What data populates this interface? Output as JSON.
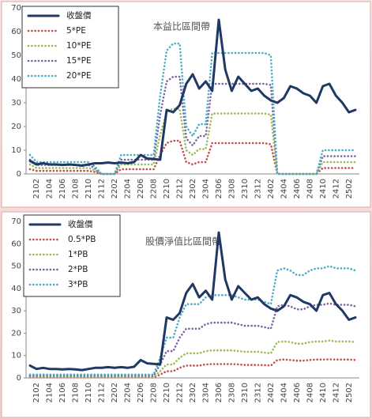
{
  "chart_data": [
    {
      "type": "line",
      "annotation": "本益比區間帶",
      "categories": [
        null,
        "2102",
        null,
        "2104",
        null,
        "2106",
        null,
        "2108",
        null,
        "2110",
        null,
        "2112",
        null,
        "2202",
        null,
        "2204",
        null,
        "2206",
        null,
        "2208",
        null,
        "2210",
        null,
        "2212",
        null,
        "2302",
        null,
        "2304",
        null,
        "2306",
        null,
        "2308",
        null,
        "2310",
        null,
        "2312",
        null,
        "2402",
        null,
        "2404",
        null,
        "2406",
        null,
        "2408",
        null,
        "2410",
        null,
        "2412",
        null,
        "2502",
        null
      ],
      "ylim": [
        0,
        70
      ],
      "yticks": [
        0,
        10,
        20,
        30,
        40,
        50,
        60,
        70
      ],
      "series": [
        {
          "name": "收盤價",
          "color": "#1f3864",
          "values": [
            5.5,
            4,
            4.5,
            4,
            4,
            3.8,
            4,
            3.8,
            3.5,
            4,
            4.5,
            4.5,
            4.8,
            4.5,
            4.8,
            4.5,
            5,
            8,
            6.5,
            6.3,
            6,
            27,
            26,
            29,
            38,
            42,
            36,
            39,
            35,
            65,
            44,
            35,
            41,
            38,
            35,
            36,
            33,
            31,
            30,
            32,
            37,
            36,
            34,
            33,
            30,
            37,
            38,
            33,
            30,
            26,
            27
          ]
        },
        {
          "name": "5*PE",
          "color": "#c0504d",
          "values": [
            2,
            1.3,
            1.3,
            1.3,
            1.3,
            1.3,
            1.3,
            1.3,
            1.3,
            1.3,
            0.8,
            0,
            0,
            0,
            2,
            2,
            2,
            2,
            2,
            2,
            8,
            13,
            14,
            14,
            5,
            4,
            5,
            5,
            13,
            13,
            13,
            13,
            13,
            13,
            13,
            13,
            13,
            12.5,
            0,
            0,
            0,
            0,
            0,
            0,
            0,
            2.5,
            2.5,
            2.5,
            2.5,
            2.5,
            2.5
          ]
        },
        {
          "name": "10*PE",
          "color": "#9bbb59",
          "values": [
            4,
            2.5,
            2.5,
            2.5,
            2.5,
            2.5,
            2.5,
            2.5,
            2.5,
            2.5,
            1.5,
            0,
            0,
            0,
            4,
            4,
            4,
            4,
            4,
            4,
            16.5,
            26,
            27.5,
            27.5,
            10,
            8,
            10.5,
            10.5,
            25.5,
            25.5,
            25.5,
            25.5,
            25.5,
            25.5,
            25.5,
            25.5,
            25.5,
            25,
            0,
            0,
            0,
            0,
            0,
            0,
            0,
            5,
            5,
            5,
            5,
            5,
            5
          ]
        },
        {
          "name": "15*PE",
          "color": "#8064a2",
          "values": [
            6,
            3.8,
            3.8,
            3.8,
            3.8,
            3.8,
            3.8,
            3.8,
            3.8,
            3.8,
            2.3,
            0,
            0,
            0,
            6,
            6,
            6,
            6,
            6,
            6,
            25,
            39,
            41,
            41,
            15,
            12,
            16,
            16,
            38,
            38,
            38,
            38,
            38,
            38,
            38,
            38,
            38,
            37.5,
            0,
            0,
            0,
            0,
            0,
            0,
            0,
            7.5,
            7.5,
            7.5,
            7.5,
            7.5,
            7.5
          ]
        },
        {
          "name": "20*PE",
          "color": "#4bacc6",
          "values": [
            8,
            5,
            5,
            5,
            5,
            5,
            5,
            5,
            5,
            5,
            3,
            0,
            0,
            0,
            8,
            8,
            8,
            8,
            8,
            8,
            33,
            52,
            55,
            55,
            20,
            16,
            21,
            21,
            51,
            51,
            51,
            51,
            51,
            51,
            51,
            51,
            51,
            50,
            0,
            0,
            0,
            0,
            0,
            0,
            0,
            10,
            10,
            10,
            10,
            10,
            10
          ]
        }
      ]
    },
    {
      "type": "line",
      "annotation": "股價淨值比區間帶",
      "categories": [
        null,
        "2102",
        null,
        "2104",
        null,
        "2106",
        null,
        "2108",
        null,
        "2110",
        null,
        "2112",
        null,
        "2202",
        null,
        "2204",
        null,
        "2206",
        null,
        "2208",
        null,
        "2210",
        null,
        "2212",
        null,
        "2302",
        null,
        "2304",
        null,
        "2306",
        null,
        "2308",
        null,
        "2310",
        null,
        "2312",
        null,
        "2402",
        null,
        "2404",
        null,
        "2406",
        null,
        "2408",
        null,
        "2410",
        null,
        "2412",
        null,
        "2502",
        null
      ],
      "ylim": [
        0,
        70
      ],
      "yticks": [
        0,
        10,
        20,
        30,
        40,
        50,
        60,
        70
      ],
      "series": [
        {
          "name": "收盤價",
          "color": "#1f3864",
          "values": [
            5.5,
            4,
            4.5,
            4,
            4,
            3.8,
            4,
            3.8,
            3.5,
            4,
            4.5,
            4.5,
            4.8,
            4.5,
            4.8,
            4.5,
            5,
            8,
            6.5,
            6.3,
            6,
            27,
            26,
            29,
            38,
            42,
            36,
            39,
            35,
            65,
            44,
            35,
            41,
            38,
            35,
            36,
            33,
            31,
            30,
            32,
            37,
            36,
            34,
            33,
            30,
            37,
            38,
            33,
            30,
            26,
            27
          ]
        },
        {
          "name": "0.5*PB",
          "color": "#c0504d",
          "values": [
            0.25,
            0.25,
            0.25,
            0.25,
            0.25,
            0.25,
            0.25,
            0.25,
            0.25,
            0.25,
            0.25,
            0.25,
            0.25,
            0.25,
            0.25,
            0.25,
            0.25,
            0.25,
            0.25,
            0.25,
            1.5,
            3,
            3,
            4.5,
            5.5,
            5.5,
            5.5,
            6,
            6.2,
            6.2,
            6.2,
            6.2,
            6,
            5.8,
            5.8,
            5.8,
            5.7,
            5.5,
            8,
            8.2,
            8,
            7.7,
            7.7,
            8,
            8.2,
            8.2,
            8.3,
            8.2,
            8.2,
            8.2,
            8
          ]
        },
        {
          "name": "1*PB",
          "color": "#9bbb59",
          "values": [
            0.5,
            0.5,
            0.5,
            0.5,
            0.5,
            0.5,
            0.5,
            0.5,
            0.5,
            0.5,
            0.5,
            0.5,
            0.5,
            0.5,
            0.5,
            0.5,
            0.5,
            0.5,
            0.5,
            0.5,
            3,
            6,
            6,
            9,
            11,
            11,
            11,
            12,
            12.3,
            12.3,
            12.3,
            12.3,
            12,
            11.7,
            11.7,
            11.7,
            11.3,
            11,
            16,
            16.3,
            16,
            15.3,
            15.3,
            16,
            16.3,
            16.3,
            16.7,
            16.3,
            16.3,
            16.3,
            16
          ]
        },
        {
          "name": "2*PB",
          "color": "#8064a2",
          "values": [
            1,
            1,
            1,
            1,
            1,
            1,
            1,
            1,
            1,
            1,
            1,
            1,
            1,
            1,
            1,
            1,
            1,
            1,
            1,
            1,
            6,
            12,
            12,
            18,
            22,
            22,
            22,
            24,
            24.7,
            24.7,
            24.7,
            24.7,
            24,
            23.3,
            23.3,
            23.3,
            22.7,
            22,
            32,
            32.7,
            32,
            30.7,
            30.7,
            32,
            32.7,
            32.7,
            33.3,
            32.7,
            32.7,
            32.7,
            32
          ]
        },
        {
          "name": "3*PB",
          "color": "#4bacc6",
          "values": [
            1.5,
            1.5,
            1.5,
            1.5,
            1.5,
            1.5,
            1.5,
            1.5,
            1.5,
            1.5,
            1.5,
            1.5,
            1.5,
            1.5,
            1.5,
            1.5,
            1.5,
            1.5,
            1.5,
            1.5,
            9,
            18,
            18,
            27,
            33,
            33,
            33,
            36,
            37,
            37,
            37,
            37,
            36,
            35,
            35,
            35,
            34,
            33,
            48,
            49,
            48,
            46,
            46,
            48,
            49,
            49,
            50,
            49,
            49,
            49,
            48
          ]
        }
      ]
    }
  ]
}
